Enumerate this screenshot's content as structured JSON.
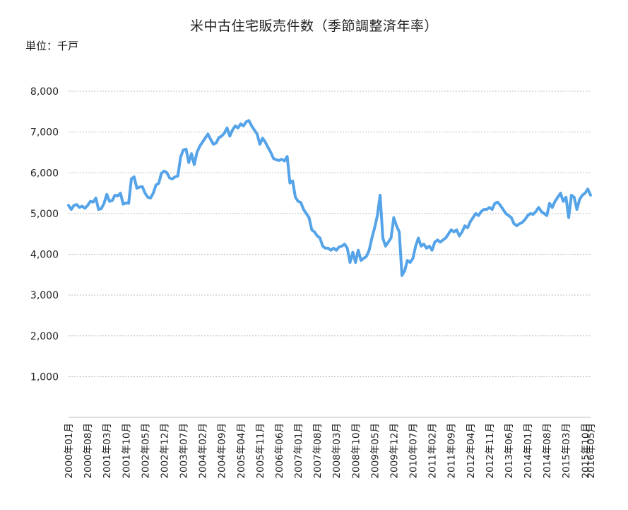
{
  "chart_data": {
    "type": "line",
    "title": "米中古住宅販売件数（季節調整済年率）",
    "unit_label": "単位：千戸",
    "ylim": [
      0,
      8000
    ],
    "y_ticks": [
      "1,000",
      "2,000",
      "3,000",
      "4,000",
      "5,000",
      "6,000",
      "7,000",
      "8,000"
    ],
    "y_tick_values": [
      1000,
      2000,
      3000,
      4000,
      5000,
      6000,
      7000,
      8000
    ],
    "grid": true,
    "legend": "none",
    "line_color": "#55a3e8",
    "x_tick_labels": [
      "2000年01月",
      "2000年08月",
      "2001年03月",
      "2001年10月",
      "2002年05月",
      "2002年12月",
      "2003年07月",
      "2004年02月",
      "2004年09月",
      "2005年04月",
      "2005年11月",
      "2006年06月",
      "2007年01月",
      "2007年08月",
      "2008年03月",
      "2008年10月",
      "2009年05月",
      "2009年12月",
      "2010年07月",
      "2011年02月",
      "2011年09月",
      "2012年04月",
      "2012年11月",
      "2013年06月",
      "2014年01月",
      "2014年08月",
      "2015年03月",
      "2015年10月",
      "2016年05月"
    ],
    "x_start": "2000-01",
    "x_step_months": 7,
    "series": [
      {
        "values": [
          5200,
          5100,
          5200,
          5220,
          5150,
          5180,
          5130,
          5200,
          5300,
          5280,
          5380,
          5100,
          5120,
          5250,
          5470,
          5300,
          5320,
          5450,
          5430,
          5500,
          5230,
          5260,
          5250,
          5850,
          5900,
          5620,
          5650,
          5660,
          5500,
          5400,
          5380,
          5500,
          5700,
          5740,
          5990,
          6040,
          6000,
          5870,
          5850,
          5900,
          5920,
          6380,
          6560,
          6580,
          6250,
          6470,
          6200,
          6500,
          6650,
          6750,
          6850,
          6950,
          6820,
          6700,
          6730,
          6860,
          6900,
          6970,
          7100,
          6900,
          7050,
          7150,
          7100,
          7200,
          7150,
          7250,
          7280,
          7150,
          7050,
          6950,
          6700,
          6850,
          6750,
          6620,
          6500,
          6350,
          6320,
          6300,
          6330,
          6290,
          6400,
          5750,
          5800,
          5400,
          5300,
          5270,
          5100,
          5000,
          4900,
          4600,
          4550,
          4450,
          4400,
          4200,
          4150,
          4150,
          4100,
          4150,
          4100,
          4180,
          4200,
          4250,
          4150,
          3800,
          4050,
          3800,
          4100,
          3850,
          3900,
          3950,
          4100,
          4400,
          4650,
          4950,
          5450,
          4400,
          4200,
          4300,
          4400,
          4900,
          4700,
          4550,
          3480,
          3600,
          3850,
          3800,
          3900,
          4200,
          4400,
          4200,
          4250,
          4150,
          4200,
          4100,
          4300,
          4350,
          4300,
          4350,
          4400,
          4500,
          4600,
          4550,
          4600,
          4450,
          4550,
          4700,
          4650,
          4800,
          4900,
          5000,
          4950,
          5050,
          5100,
          5100,
          5150,
          5100,
          5250,
          5280,
          5200,
          5100,
          5000,
          4950,
          4900,
          4750,
          4700,
          4750,
          4780,
          4850,
          4950,
          5000,
          4980,
          5050,
          5150,
          5050,
          5000,
          4950,
          5250,
          5150,
          5300,
          5400,
          5500,
          5300,
          5400,
          4900,
          5450,
          5400,
          5100,
          5350,
          5450,
          5500,
          5600,
          5450
        ]
      }
    ]
  }
}
